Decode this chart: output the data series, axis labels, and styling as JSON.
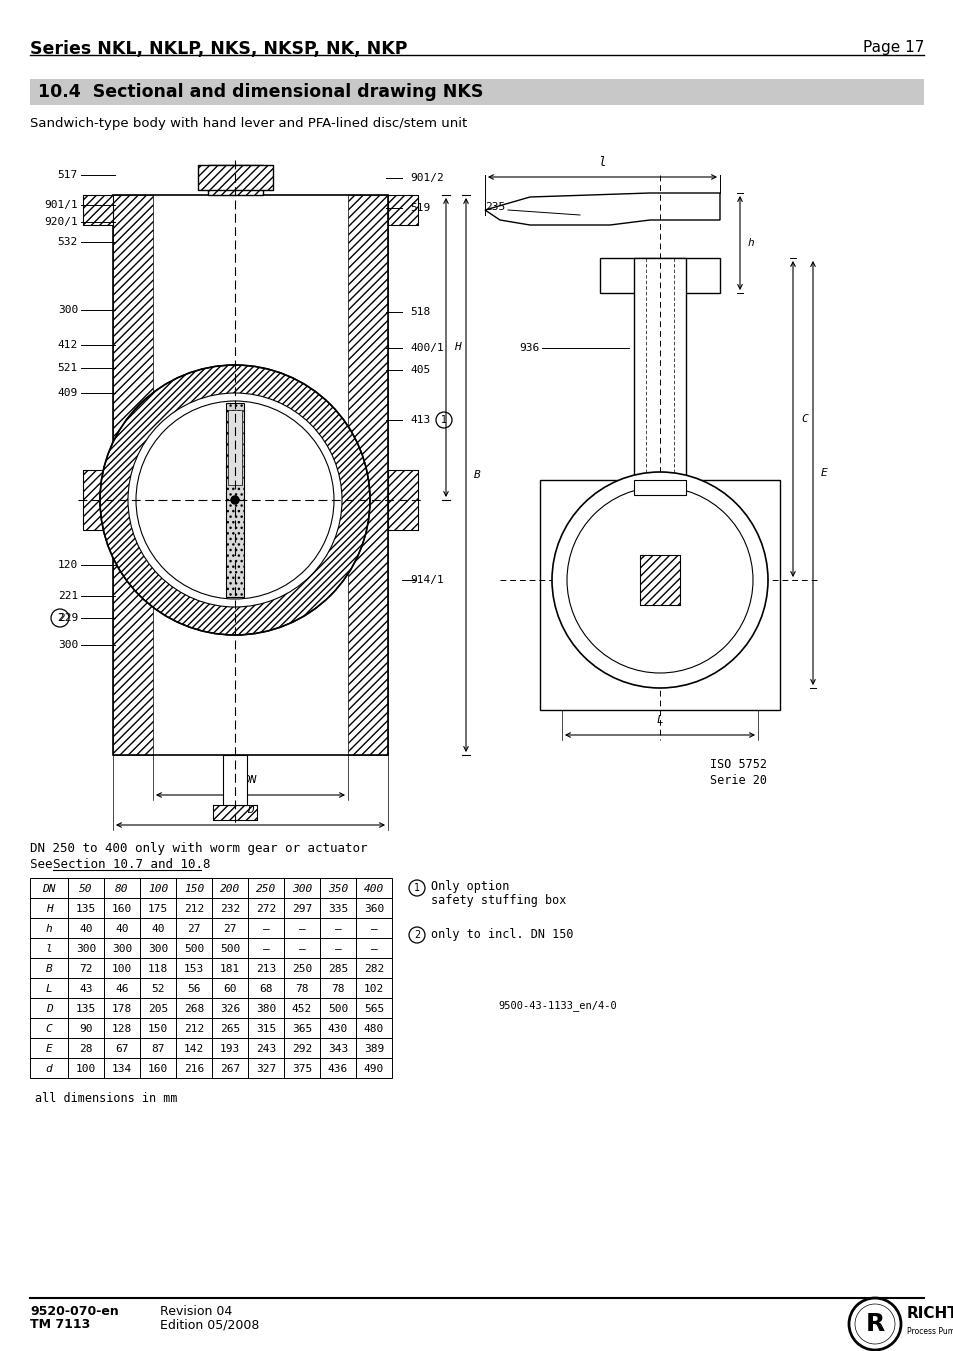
{
  "header_title": "Series NKL, NKLP, NKS, NKSP, NK, NKP",
  "header_page": "Page 17",
  "section_title": "10.4  Sectional and dimensional drawing NKS",
  "subtitle": "Sandwich-type body with hand lever and PFA-lined disc/stem unit",
  "table_note1": "DN 250 to 400 only with worm gear or actuator",
  "table_note2_pre": "See ",
  "table_note2_link": "Section 10.7 and 10.8",
  "table_headers": [
    "DN",
    "50",
    "80",
    "100",
    "150",
    "200",
    "250",
    "300",
    "350",
    "400"
  ],
  "table_rows": [
    [
      "H",
      "135",
      "160",
      "175",
      "212",
      "232",
      "272",
      "297",
      "335",
      "360"
    ],
    [
      "h",
      "40",
      "40",
      "40",
      "27",
      "27",
      "—",
      "—",
      "—",
      "—"
    ],
    [
      "l",
      "300",
      "300",
      "300",
      "500",
      "500",
      "—",
      "—",
      "—",
      "—"
    ],
    [
      "B",
      "72",
      "100",
      "118",
      "153",
      "181",
      "213",
      "250",
      "285",
      "282"
    ],
    [
      "L",
      "43",
      "46",
      "52",
      "56",
      "60",
      "68",
      "78",
      "78",
      "102"
    ],
    [
      "D",
      "135",
      "178",
      "205",
      "268",
      "326",
      "380",
      "452",
      "500",
      "565"
    ],
    [
      "C",
      "90",
      "128",
      "150",
      "212",
      "265",
      "315",
      "365",
      "430",
      "480"
    ],
    [
      "E",
      "28",
      "67",
      "87",
      "142",
      "193",
      "243",
      "292",
      "343",
      "389"
    ],
    [
      "d",
      "100",
      "134",
      "160",
      "216",
      "267",
      "327",
      "375",
      "436",
      "490"
    ]
  ],
  "note1_text1": "Only option",
  "note1_text2": "safety stuffing box",
  "note2_text": "only to incl. DN 150",
  "drawing_ref": "9500-43-1133_en/4-0",
  "dim_note": "all dimensions in mm",
  "footer_doc": "9520-070-en",
  "footer_rev": "Revision 04",
  "footer_tm": "TM 7113",
  "footer_ed": "Edition 05/2008",
  "bg_color": "#ffffff",
  "section_bg": "#c8c8c8"
}
